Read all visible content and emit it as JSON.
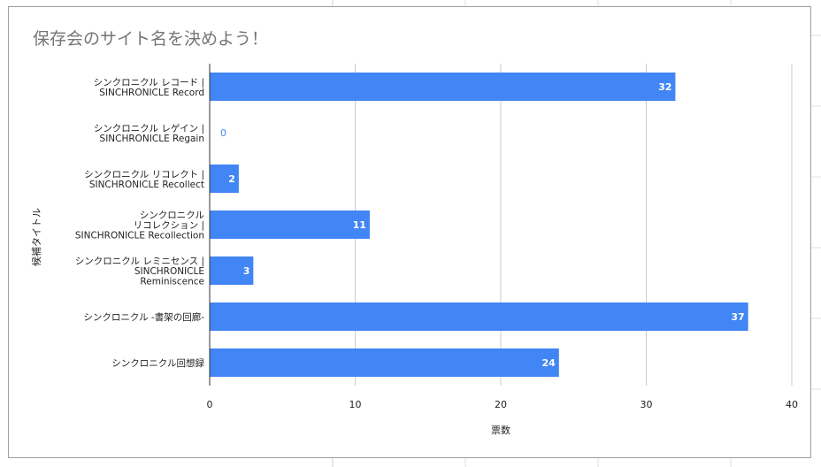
{
  "chart_data": {
    "type": "bar",
    "orientation": "horizontal",
    "title": "保存会のサイト名を決めよう！",
    "xlabel": "票数",
    "ylabel": "候補タイトル",
    "categories": [
      [
        "シンクロニクル レコード |",
        "SINCHRONICLE Record"
      ],
      [
        "シンクロニクル レゲイン |",
        "SINCHRONICLE Regain"
      ],
      [
        "シンクロニクル リコレクト |",
        "SINCHRONICLE Recollect"
      ],
      [
        "シンクロニクル",
        "リコレクション |",
        "SINCHRONICLE Recollection"
      ],
      [
        "シンクロニクル レミニセンス |",
        "SINCHRONICLE",
        "Reminiscence"
      ],
      [
        "シンクロニクル -書架の回廊-"
      ],
      [
        "シンクロニクル回想録"
      ]
    ],
    "values": [
      32,
      0,
      2,
      11,
      3,
      37,
      24
    ],
    "xlim": [
      0,
      40
    ],
    "xticks": [
      "0",
      "10",
      "20",
      "30",
      "40"
    ],
    "grid": true,
    "bar_color": "#4285f4"
  }
}
